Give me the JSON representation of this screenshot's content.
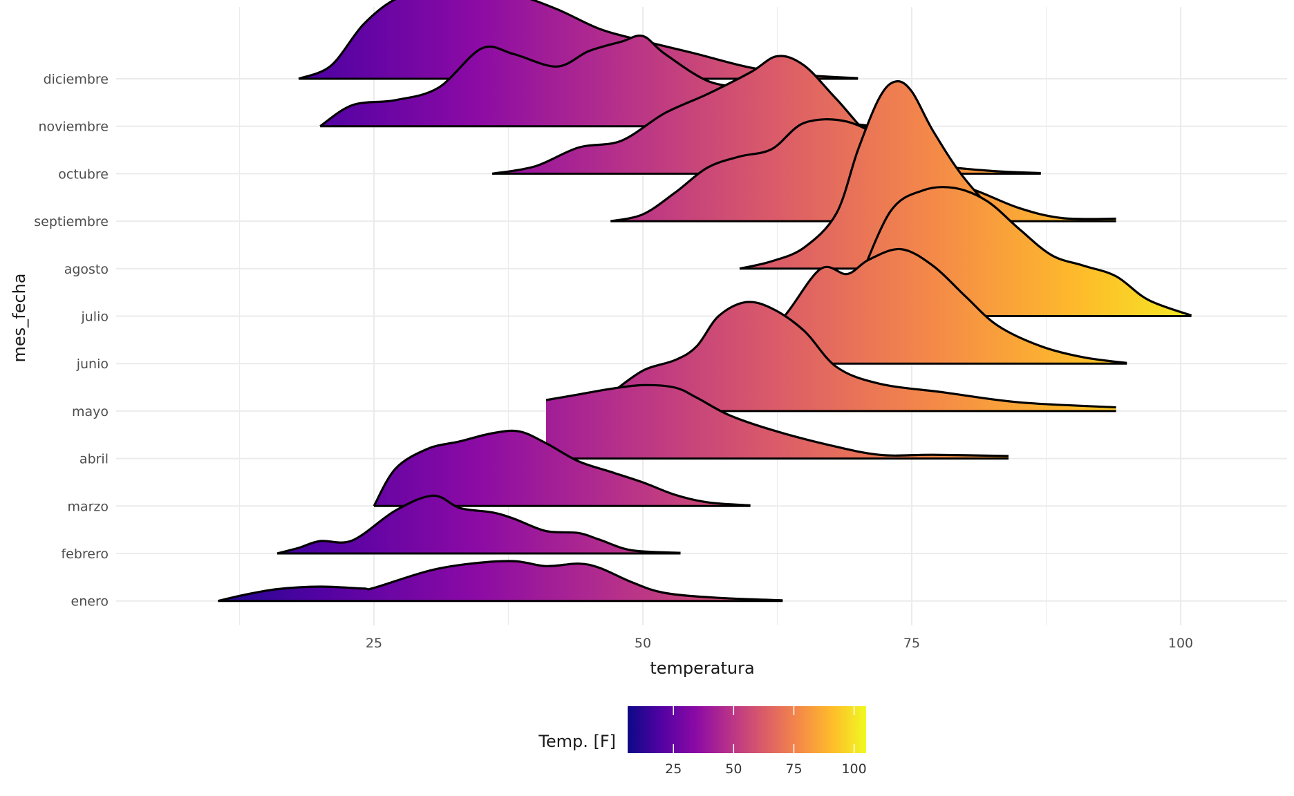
{
  "chart_data": {
    "type": "ridgeline-density",
    "xlabel": "temperatura",
    "ylabel": "mes_fecha",
    "x_ticks": [
      25,
      50,
      75,
      100
    ],
    "xlim": [
      0,
      110
    ],
    "grid": true,
    "fill": "gradient by temperatura (plasma palette)",
    "legend": {
      "title": "Temp. [F]",
      "placement": "bottom",
      "ticks": [
        25,
        50,
        75,
        100
      ],
      "range": [
        6,
        105
      ],
      "palette": [
        "#0d0887",
        "#5302a3",
        "#8b0aa5",
        "#b83289",
        "#db5c68",
        "#f48849",
        "#febc2a",
        "#f0f921"
      ]
    },
    "series": [
      {
        "name": "enero",
        "x": [
          10.5,
          13,
          16,
          20,
          24,
          25,
          30,
          34,
          38,
          41,
          44,
          46,
          49,
          52,
          57,
          63
        ],
        "y": [
          0.0,
          0.1,
          0.19,
          0.23,
          0.2,
          0.21,
          0.48,
          0.6,
          0.64,
          0.56,
          0.6,
          0.53,
          0.3,
          0.13,
          0.05,
          0.01
        ]
      },
      {
        "name": "febrero",
        "x": [
          16,
          18,
          20,
          23,
          27,
          30.5,
          33,
          36,
          38,
          41,
          44,
          46,
          49,
          53.5
        ],
        "y": [
          0.0,
          0.09,
          0.2,
          0.21,
          0.69,
          0.93,
          0.73,
          0.66,
          0.56,
          0.36,
          0.33,
          0.22,
          0.05,
          0.01
        ]
      },
      {
        "name": "marzo",
        "x": [
          25,
          27,
          30,
          33,
          36,
          38.5,
          41,
          44,
          47,
          50,
          53,
          56,
          60
        ],
        "y": [
          0.0,
          0.6,
          0.92,
          1.04,
          1.17,
          1.2,
          1.01,
          0.72,
          0.55,
          0.38,
          0.18,
          0.06,
          0.01
        ]
      },
      {
        "name": "abril",
        "x": [
          41,
          44,
          47,
          50,
          53,
          55,
          58,
          62,
          67,
          72,
          77,
          84
        ],
        "y": [
          0.94,
          1.03,
          1.12,
          1.18,
          1.14,
          0.98,
          0.7,
          0.46,
          0.23,
          0.06,
          0.06,
          0.04
        ]
      },
      {
        "name": "mayo",
        "x": [
          47,
          50,
          53,
          55,
          57,
          59.5,
          62,
          65,
          68,
          72,
          78,
          85,
          94
        ],
        "y": [
          0.28,
          0.65,
          0.82,
          1.04,
          1.52,
          1.75,
          1.65,
          1.29,
          0.71,
          0.44,
          0.3,
          0.14,
          0.06
        ]
      },
      {
        "name": "junio",
        "x": [
          60,
          63,
          66.5,
          69,
          71,
          74,
          77,
          80,
          83,
          87,
          91,
          95
        ],
        "y": [
          0.33,
          0.73,
          1.52,
          1.44,
          1.67,
          1.84,
          1.57,
          1.08,
          0.61,
          0.28,
          0.1,
          0.01
        ]
      },
      {
        "name": "julio",
        "x": [
          70,
          73,
          76,
          79,
          82,
          85,
          88,
          91,
          94,
          97,
          101
        ],
        "y": [
          0.52,
          1.68,
          2.02,
          2.06,
          1.85,
          1.4,
          0.98,
          0.81,
          0.64,
          0.26,
          0.01
        ]
      },
      {
        "name": "agosto",
        "x": [
          59,
          62,
          65,
          68,
          70,
          72,
          73.5,
          75,
          77,
          80,
          84,
          88,
          91
        ],
        "y": [
          0.0,
          0.12,
          0.34,
          0.89,
          1.91,
          2.75,
          3.01,
          2.85,
          2.21,
          1.43,
          0.7,
          0.18,
          0.0
        ]
      },
      {
        "name": "septiembre",
        "x": [
          47,
          50,
          53,
          56,
          59,
          62,
          65,
          69,
          73,
          77,
          81,
          85,
          89,
          94
        ],
        "y": [
          0.0,
          0.11,
          0.46,
          0.86,
          1.04,
          1.16,
          1.58,
          1.6,
          1.25,
          0.72,
          0.49,
          0.21,
          0.05,
          0.04
        ]
      },
      {
        "name": "octubre",
        "x": [
          36,
          40,
          44,
          48,
          52,
          56,
          60,
          62.5,
          65,
          68,
          72,
          77,
          82,
          87
        ],
        "y": [
          0.0,
          0.12,
          0.42,
          0.53,
          0.97,
          1.28,
          1.63,
          1.89,
          1.74,
          1.2,
          0.48,
          0.16,
          0.05,
          0.01
        ]
      },
      {
        "name": "noviembre",
        "x": [
          20,
          23,
          27,
          31,
          35,
          38,
          42,
          45,
          48,
          50,
          52,
          56,
          60,
          64,
          67,
          71
        ],
        "y": [
          0.0,
          0.34,
          0.42,
          0.62,
          1.25,
          1.16,
          0.96,
          1.21,
          1.36,
          1.45,
          1.17,
          0.73,
          0.58,
          0.28,
          0.1,
          0.01
        ]
      },
      {
        "name": "diciembre",
        "x": [
          18,
          21,
          24,
          27,
          30,
          34,
          38,
          42,
          46,
          50,
          55,
          60,
          65,
          70
        ],
        "y": [
          0.0,
          0.21,
          0.87,
          1.28,
          1.39,
          1.44,
          1.36,
          1.12,
          0.8,
          0.61,
          0.4,
          0.18,
          0.06,
          0.01
        ]
      }
    ]
  }
}
